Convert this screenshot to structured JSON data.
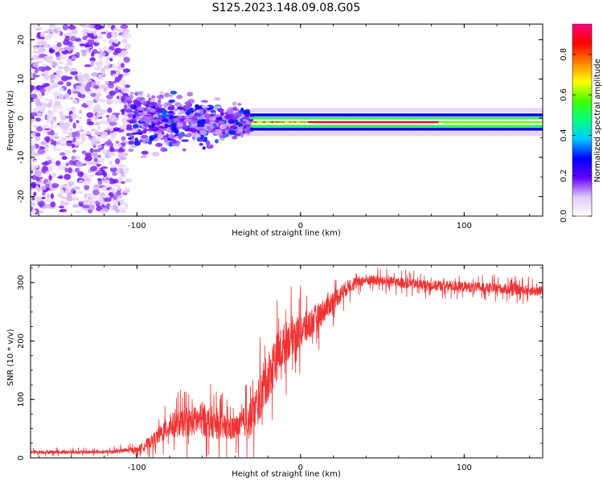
{
  "title": "S125.2023.148.09.08.G05",
  "chart_data": [
    {
      "type": "heatmap",
      "name": "spectrogram",
      "xlabel": "Height of straight line (km)",
      "ylabel": "Frequency (Hz)",
      "xlim": [
        -165,
        148
      ],
      "ylim": [
        -25,
        24
      ],
      "xticks": [
        "-100",
        "0",
        "100"
      ],
      "yticks": [
        "20",
        "10",
        "0",
        "-10",
        "-20"
      ],
      "colorbar": {
        "label": "Normalized spectral amplitude",
        "range": [
          0,
          0.95
        ],
        "ticks": [
          "0.0",
          "0.2",
          "0.4",
          "0.6",
          "0.8"
        ],
        "colors": [
          "#ffffff",
          "#e0c8f8",
          "#6600ff",
          "#0000ff",
          "#00c8ff",
          "#00ff80",
          "#44ff00",
          "#ffff00",
          "#ff8000",
          "#ff0000",
          "#ff0080"
        ]
      },
      "description_regions": [
        {
          "x_from": -165,
          "x_to": -105,
          "freq_spread": 24,
          "level": 0.2
        },
        {
          "x_from": -105,
          "x_to": -30,
          "freq_spread": 12,
          "level": 0.3
        },
        {
          "x_from": -30,
          "x_to": 148,
          "center_freq": -1,
          "band_halfwidth": 1.5,
          "level": 0.9
        }
      ]
    },
    {
      "type": "line",
      "name": "snr",
      "xlabel": "Height of straight line (km)",
      "ylabel": "SNR (10 * v/v)",
      "xlim": [
        -165,
        148
      ],
      "ylim": [
        0,
        330
      ],
      "xticks": [
        "-100",
        "0",
        "100"
      ],
      "yticks": [
        "300",
        "200",
        "100",
        "0"
      ],
      "color": "#ee3333",
      "series": [
        {
          "name": "SNR",
          "x": [
            -165,
            -120,
            -100,
            -90,
            -80,
            -70,
            -60,
            -50,
            -40,
            -35,
            -30,
            -25,
            -20,
            -15,
            -10,
            -5,
            0,
            10,
            20,
            30,
            40,
            60,
            80,
            100,
            120,
            148
          ],
          "values": [
            10,
            10,
            14,
            30,
            55,
            60,
            65,
            55,
            50,
            60,
            70,
            100,
            140,
            170,
            195,
            210,
            215,
            240,
            270,
            295,
            305,
            300,
            295,
            293,
            290,
            285
          ],
          "noise": [
            5,
            5,
            8,
            20,
            35,
            40,
            45,
            40,
            35,
            40,
            55,
            65,
            70,
            70,
            60,
            55,
            50,
            40,
            30,
            20,
            15,
            15,
            15,
            15,
            15,
            15
          ]
        }
      ]
    }
  ]
}
